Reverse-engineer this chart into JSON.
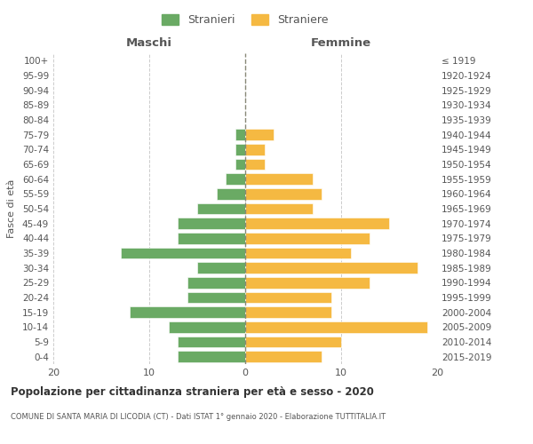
{
  "age_groups": [
    "0-4",
    "5-9",
    "10-14",
    "15-19",
    "20-24",
    "25-29",
    "30-34",
    "35-39",
    "40-44",
    "45-49",
    "50-54",
    "55-59",
    "60-64",
    "65-69",
    "70-74",
    "75-79",
    "80-84",
    "85-89",
    "90-94",
    "95-99",
    "100+"
  ],
  "birth_years": [
    "2015-2019",
    "2010-2014",
    "2005-2009",
    "2000-2004",
    "1995-1999",
    "1990-1994",
    "1985-1989",
    "1980-1984",
    "1975-1979",
    "1970-1974",
    "1965-1969",
    "1960-1964",
    "1955-1959",
    "1950-1954",
    "1945-1949",
    "1940-1944",
    "1935-1939",
    "1930-1934",
    "1925-1929",
    "1920-1924",
    "≤ 1919"
  ],
  "maschi": [
    7,
    7,
    8,
    12,
    6,
    6,
    5,
    13,
    7,
    7,
    5,
    3,
    2,
    1,
    1,
    1,
    0,
    0,
    0,
    0,
    0
  ],
  "femmine": [
    8,
    10,
    19,
    9,
    9,
    13,
    18,
    11,
    13,
    15,
    7,
    8,
    7,
    2,
    2,
    3,
    0,
    0,
    0,
    0,
    0
  ],
  "color_maschi": "#6aaa64",
  "color_femmine": "#f5b942",
  "title": "Popolazione per cittadinanza straniera per età e sesso - 2020",
  "subtitle": "COMUNE DI SANTA MARIA DI LICODIA (CT) - Dati ISTAT 1° gennaio 2020 - Elaborazione TUTTITALIA.IT",
  "ylabel_left": "Fasce di età",
  "xlabel_maschi": "Maschi",
  "xlabel_femmine": "Femmine",
  "legend_stranieri": "Stranieri",
  "legend_straniere": "Straniere",
  "xlim": 20,
  "background_color": "#ffffff",
  "grid_color": "#cccccc",
  "text_color": "#555555"
}
